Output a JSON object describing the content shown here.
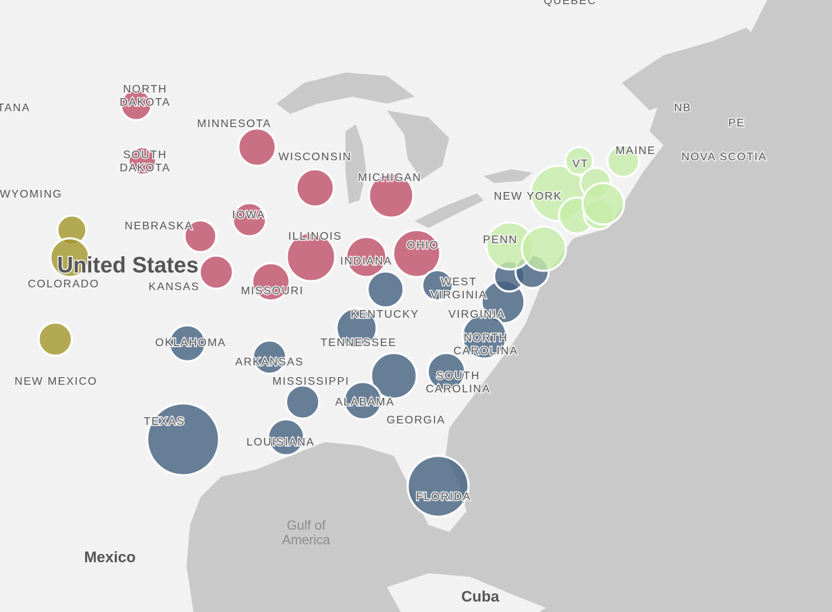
{
  "labels": [
    {
      "lines": [
        "QUEBEC"
      ]
    },
    {
      "lines": [
        "TANA"
      ]
    },
    {
      "lines": [
        "NORTH",
        "DAKOTA"
      ]
    },
    {
      "lines": [
        "MINNESOTA"
      ]
    },
    {
      "lines": [
        "SOUTH",
        "DAKOTA"
      ]
    },
    {
      "lines": [
        "WISCONSIN"
      ]
    },
    {
      "lines": [
        "MICHIGAN"
      ]
    },
    {
      "lines": [
        "WYOMING"
      ]
    },
    {
      "lines": [
        "NEBRASKA"
      ]
    },
    {
      "lines": [
        "IOWA"
      ]
    },
    {
      "lines": [
        "ILLINOIS"
      ]
    },
    {
      "lines": [
        "INDIANA"
      ]
    },
    {
      "lines": [
        "OHIO"
      ]
    },
    {
      "lines": [
        "United States"
      ]
    },
    {
      "lines": [
        "COLORADO"
      ]
    },
    {
      "lines": [
        "KANSAS"
      ]
    },
    {
      "lines": [
        "MISSOURI"
      ]
    },
    {
      "lines": [
        "KENTUCKY"
      ]
    },
    {
      "lines": [
        "WEST",
        "VIRGINIA"
      ]
    },
    {
      "lines": [
        "VIRGINIA"
      ]
    },
    {
      "lines": [
        "NEW YORK"
      ]
    },
    {
      "lines": [
        "PENN"
      ]
    },
    {
      "lines": [
        "VT"
      ]
    },
    {
      "lines": [
        "MAINE"
      ]
    },
    {
      "lines": [
        "NB"
      ]
    },
    {
      "lines": [
        "PE"
      ]
    },
    {
      "lines": [
        "NOVA SCOTIA"
      ]
    },
    {
      "lines": [
        "OKLAHOMA"
      ]
    },
    {
      "lines": [
        "TENNESSEE"
      ]
    },
    {
      "lines": [
        "NORTH",
        "CAROLINA"
      ]
    },
    {
      "lines": [
        "ARKANSAS"
      ]
    },
    {
      "lines": [
        "MISSISSIPPI"
      ]
    },
    {
      "lines": [
        "SOUTH",
        "CAROLINA"
      ]
    },
    {
      "lines": [
        "ALABAMA"
      ]
    },
    {
      "lines": [
        "GEORGIA"
      ]
    },
    {
      "lines": [
        "NEW MEXICO"
      ]
    },
    {
      "lines": [
        "TEXAS"
      ]
    },
    {
      "lines": [
        "LOUISIANA"
      ]
    },
    {
      "lines": [
        "FLORIDA"
      ]
    },
    {
      "lines": [
        "Gulf of",
        "America"
      ]
    },
    {
      "lines": [
        "Mexico"
      ]
    },
    {
      "lines": [
        "Cuba"
      ]
    }
  ]
}
